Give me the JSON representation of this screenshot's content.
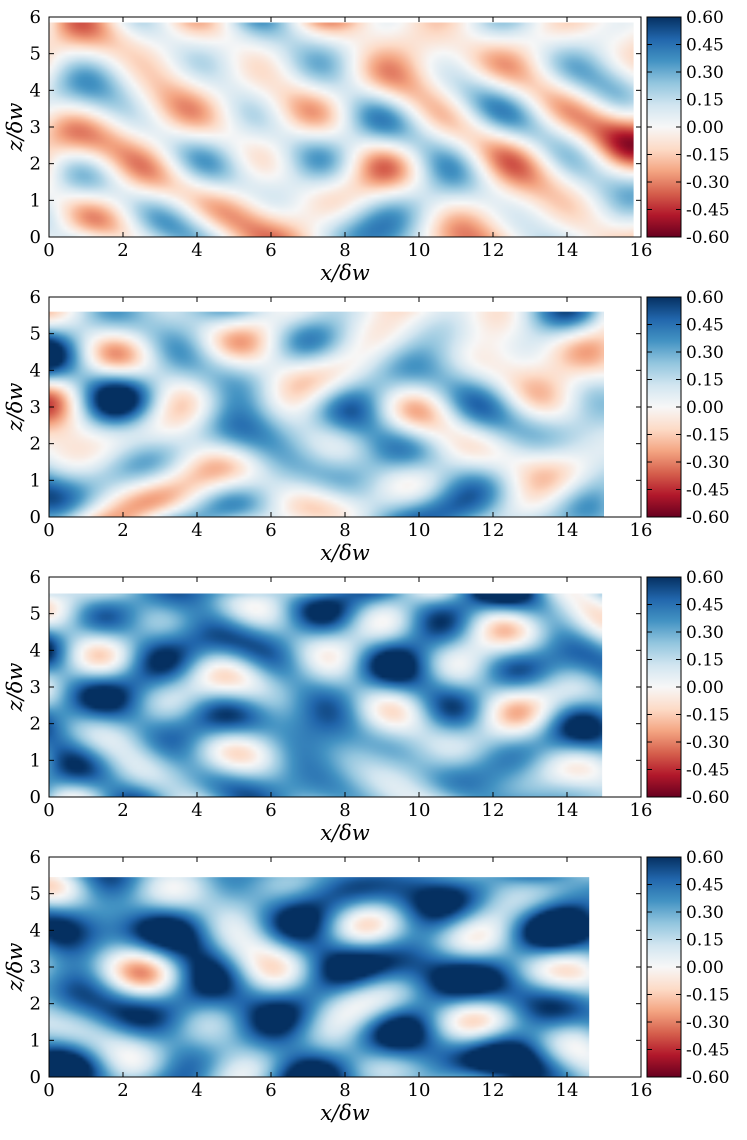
{
  "figure": {
    "description_panels": 4
  },
  "colors": {
    "red_dark": "#67001f",
    "red": "#b2182b",
    "red_mid": "#d6604d",
    "red_light": "#f4a582",
    "red_pale": "#fddbc7",
    "white": "#f7f7f7",
    "blue_pale": "#d1e5f0",
    "blue_light": "#92c5de",
    "blue_mid": "#4393c3",
    "blue": "#2166ac",
    "blue_dark": "#053061"
  },
  "chart_data": [
    {
      "type": "heatmap",
      "panel": 1,
      "xlabel": "x/δw",
      "ylabel": "z/δw",
      "xlim": [
        0,
        16
      ],
      "ylim": [
        0,
        6
      ],
      "xticks": [
        "0",
        "2",
        "4",
        "6",
        "8",
        "10",
        "12",
        "14",
        "16"
      ],
      "yticks": [
        "0",
        "1",
        "2",
        "3",
        "4",
        "5",
        "6"
      ],
      "field_extent": {
        "x": [
          0,
          15.8
        ],
        "z": [
          0,
          5.85
        ]
      },
      "value_range": [
        -0.6,
        0.6
      ],
      "approx_mean": -0.02,
      "colorbar_ticks": [
        "0.60",
        "0.45",
        "0.30",
        "0.15",
        "0.00",
        "-0.15",
        "-0.30",
        "-0.45",
        "-0.60"
      ]
    },
    {
      "type": "heatmap",
      "panel": 2,
      "xlabel": "x/δw",
      "ylabel": "z/δw",
      "xlim": [
        0,
        16
      ],
      "ylim": [
        0,
        6
      ],
      "xticks": [
        "0",
        "2",
        "4",
        "6",
        "8",
        "10",
        "12",
        "14",
        "16"
      ],
      "yticks": [
        "0",
        "1",
        "2",
        "3",
        "4",
        "5",
        "6"
      ],
      "field_extent": {
        "x": [
          0,
          15.0
        ],
        "z": [
          0,
          5.6
        ]
      },
      "value_range": [
        -0.6,
        0.6
      ],
      "approx_mean": 0.12,
      "colorbar_ticks": [
        "0.60",
        "0.45",
        "0.30",
        "0.15",
        "0.00",
        "-0.15",
        "-0.30",
        "-0.45",
        "-0.60"
      ]
    },
    {
      "type": "heatmap",
      "panel": 3,
      "xlabel": "x/δw",
      "ylabel": "z/δw",
      "xlim": [
        0,
        16
      ],
      "ylim": [
        0,
        6
      ],
      "xticks": [
        "0",
        "2",
        "4",
        "6",
        "8",
        "10",
        "12",
        "14",
        "16"
      ],
      "yticks": [
        "0",
        "1",
        "2",
        "3",
        "4",
        "5",
        "6"
      ],
      "field_extent": {
        "x": [
          0,
          14.95
        ],
        "z": [
          0,
          5.55
        ]
      },
      "value_range": [
        -0.6,
        0.6
      ],
      "approx_mean": 0.27,
      "colorbar_ticks": [
        "0.60",
        "0.45",
        "0.30",
        "0.15",
        "0.00",
        "-0.15",
        "-0.30",
        "-0.45",
        "-0.60"
      ]
    },
    {
      "type": "heatmap",
      "panel": 4,
      "xlabel": "x/δw",
      "ylabel": "z/δw",
      "xlim": [
        0,
        16
      ],
      "ylim": [
        0,
        6
      ],
      "xticks": [
        "0",
        "2",
        "4",
        "6",
        "8",
        "10",
        "12",
        "14",
        "16"
      ],
      "yticks": [
        "0",
        "1",
        "2",
        "3",
        "4",
        "5",
        "6"
      ],
      "field_extent": {
        "x": [
          0,
          14.6
        ],
        "z": [
          0,
          5.45
        ]
      },
      "value_range": [
        -0.6,
        0.6
      ],
      "approx_mean": 0.36,
      "colorbar_ticks": [
        "0.60",
        "0.45",
        "0.30",
        "0.15",
        "0.00",
        "-0.15",
        "-0.30",
        "-0.45",
        "-0.60"
      ]
    }
  ]
}
